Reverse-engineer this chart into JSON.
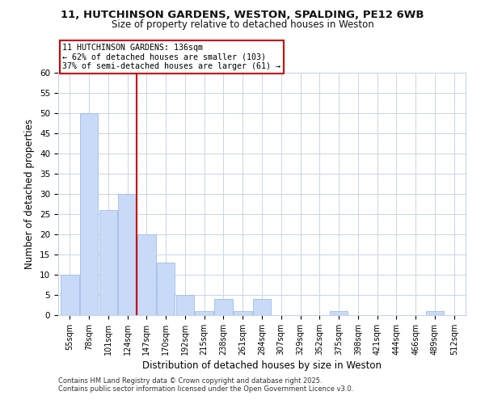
{
  "title1": "11, HUTCHINSON GARDENS, WESTON, SPALDING, PE12 6WB",
  "title2": "Size of property relative to detached houses in Weston",
  "xlabel": "Distribution of detached houses by size in Weston",
  "ylabel": "Number of detached properties",
  "categories": [
    "55sqm",
    "78sqm",
    "101sqm",
    "124sqm",
    "147sqm",
    "170sqm",
    "192sqm",
    "215sqm",
    "238sqm",
    "261sqm",
    "284sqm",
    "307sqm",
    "329sqm",
    "352sqm",
    "375sqm",
    "398sqm",
    "421sqm",
    "444sqm",
    "466sqm",
    "489sqm",
    "512sqm"
  ],
  "values": [
    10,
    50,
    26,
    30,
    20,
    13,
    5,
    1,
    4,
    1,
    4,
    0,
    0,
    0,
    1,
    0,
    0,
    0,
    0,
    1,
    0
  ],
  "bar_color": "#c9daf8",
  "bar_edge_color": "#9fbce8",
  "vline_x": 3.5,
  "vline_color": "#cc0000",
  "annotation_line1": "11 HUTCHINSON GARDENS: 136sqm",
  "annotation_line2": "← 62% of detached houses are smaller (103)",
  "annotation_line3": "37% of semi-detached houses are larger (61) →",
  "annotation_box_color": "#ffffff",
  "annotation_box_edge": "#cc0000",
  "ylim": [
    0,
    60
  ],
  "yticks": [
    0,
    5,
    10,
    15,
    20,
    25,
    30,
    35,
    40,
    45,
    50,
    55,
    60
  ],
  "footer1": "Contains HM Land Registry data © Crown copyright and database right 2025.",
  "footer2": "Contains public sector information licensed under the Open Government Licence v3.0.",
  "bg_color": "#ffffff",
  "grid_color": "#c8d4e8"
}
